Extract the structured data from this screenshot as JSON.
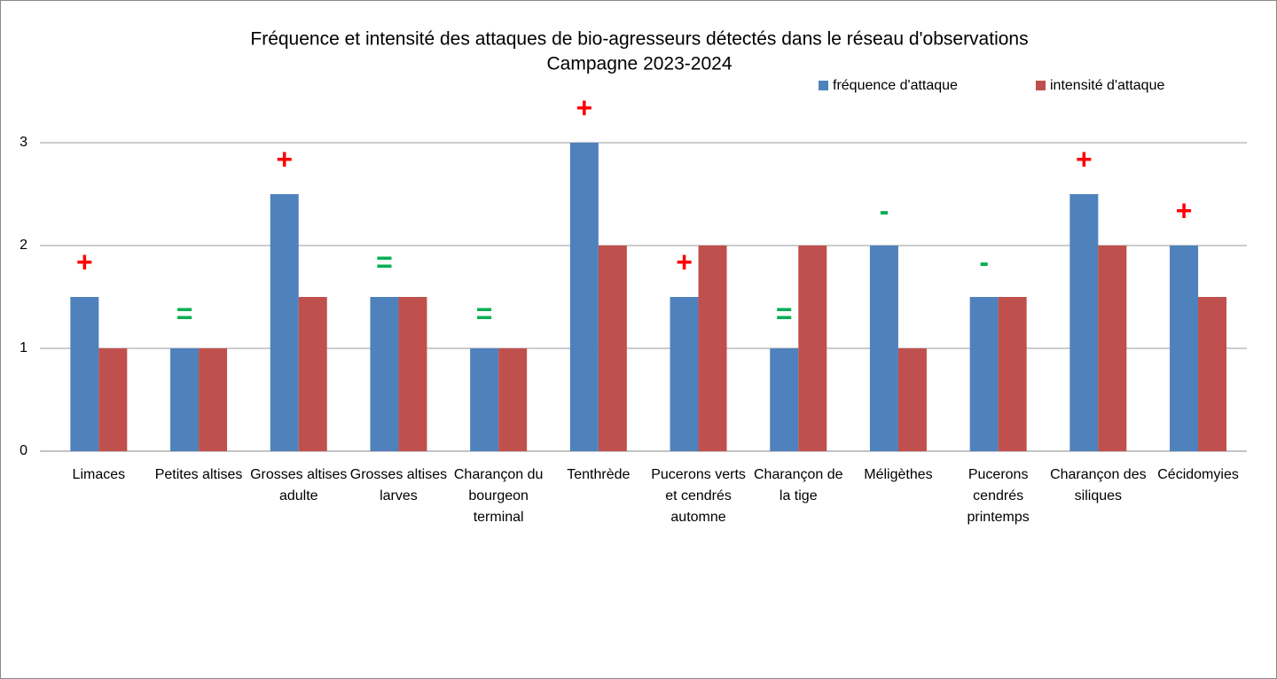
{
  "chart_data": {
    "type": "bar",
    "title": "Fréquence et intensité des attaques de bio-agresseurs détectés dans le réseau d'observations",
    "subtitle": "Campagne 2023-2024",
    "categories": [
      "Limaces",
      "Petites altises",
      "Grosses altises adulte",
      "Grosses altises larves",
      "Charançon du bourgeon terminal",
      "Tenthrède",
      "Pucerons verts et cendrés automne",
      "Charançon de la tige",
      "Méligèthes",
      "Pucerons cendrés printemps",
      "Charançon des siliques",
      "Cécidomyies"
    ],
    "series": [
      {
        "name": "fréquence d'attaque",
        "color": "#4f81bd",
        "values": [
          1.5,
          1,
          2.5,
          1.5,
          1,
          3,
          1.5,
          1,
          2,
          1.5,
          2.5,
          2
        ]
      },
      {
        "name": "intensité d'attaque",
        "color": "#c0504d",
        "values": [
          1,
          1,
          1.5,
          1.5,
          1,
          2,
          2,
          2,
          1,
          1.5,
          2,
          1.5
        ]
      }
    ],
    "annotations": [
      {
        "text": "+",
        "color": "#ff0000"
      },
      {
        "text": "=",
        "color": "#00b050"
      },
      {
        "text": "+",
        "color": "#ff0000"
      },
      {
        "text": "=",
        "color": "#00b050"
      },
      {
        "text": "=",
        "color": "#00b050"
      },
      {
        "text": "+",
        "color": "#ff0000"
      },
      {
        "text": "+",
        "color": "#ff0000"
      },
      {
        "text": "=",
        "color": "#00b050"
      },
      {
        "text": "-",
        "color": "#00b050"
      },
      {
        "text": "-",
        "color": "#00b050"
      },
      {
        "text": "+",
        "color": "#ff0000"
      },
      {
        "text": "+",
        "color": "#ff0000"
      }
    ],
    "ylim": [
      0,
      3
    ],
    "yticks": [
      0,
      1,
      2,
      3
    ],
    "grid": true,
    "legend": "top-right"
  }
}
